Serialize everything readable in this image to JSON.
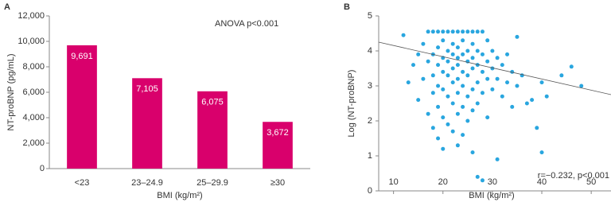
{
  "chart_data": [
    {
      "type": "bar",
      "label": "A",
      "ylabel": "NT-proBNP (pg/mL)",
      "xlabel": "BMI (kg/m²)",
      "annotation": "ANOVA p<0.001",
      "categories": [
        "<23",
        "23–24.9",
        "25–29.9",
        "≥30"
      ],
      "values": [
        9691,
        7105,
        6075,
        3672
      ],
      "value_labels": [
        "9,691",
        "7,105",
        "6,075",
        "3,672"
      ],
      "color": "#d9006c",
      "ylim": [
        0,
        12000
      ],
      "yticks": [
        0,
        {
          "value": 2000,
          "label": "2,000"
        },
        {
          "value": 4000,
          "label": "4,000"
        },
        {
          "value": 6000,
          "label": "6,000"
        },
        {
          "value": 8000,
          "label": "8,000"
        },
        {
          "value": 10000,
          "label": "10,000"
        },
        {
          "value": 12000,
          "label": "12,000"
        }
      ]
    },
    {
      "type": "scatter",
      "label": "B",
      "ylabel": "Log (NT-proBNP)",
      "xlabel": "BMI (kg/m²)",
      "annotation": "r=−0.232, p<0.001",
      "color": "#29a6df",
      "x": [
        12,
        13,
        14,
        15,
        15,
        16,
        16,
        17,
        17,
        17,
        18,
        18,
        18,
        18,
        18,
        19,
        19,
        19,
        19,
        19,
        19,
        20,
        20,
        20,
        20,
        20,
        20,
        20,
        21,
        21,
        21,
        21,
        21,
        21,
        22,
        22,
        22,
        22,
        22,
        22,
        22,
        23,
        23,
        23,
        23,
        23,
        23,
        23,
        23,
        24,
        24,
        24,
        24,
        24,
        24,
        24,
        25,
        25,
        25,
        25,
        25,
        25,
        26,
        26,
        26,
        26,
        26,
        26,
        26,
        27,
        27,
        27,
        27,
        27,
        27,
        28,
        28,
        28,
        28,
        28,
        29,
        29,
        29,
        29,
        30,
        30,
        30,
        31,
        31,
        31,
        32,
        32,
        33,
        33,
        34,
        34,
        35,
        35,
        36,
        37,
        38,
        39,
        40,
        40,
        41,
        44,
        46,
        48
      ],
      "values": [
        4.45,
        3.1,
        3.6,
        3.9,
        2.6,
        4.2,
        3.2,
        4.55,
        3.7,
        2.2,
        4.55,
        3.9,
        3.3,
        2.8,
        1.8,
        4.55,
        4.1,
        3.6,
        3.0,
        2.4,
        1.5,
        4.55,
        4.3,
        3.8,
        3.4,
        2.9,
        2.1,
        1.2,
        4.55,
        4.0,
        3.7,
        3.3,
        2.7,
        1.9,
        4.55,
        4.2,
        3.9,
        3.5,
        3.1,
        2.5,
        1.7,
        4.55,
        4.1,
        3.8,
        3.6,
        3.2,
        2.8,
        2.2,
        1.3,
        4.55,
        4.3,
        3.9,
        3.4,
        3.0,
        2.4,
        1.6,
        4.55,
        4.0,
        3.7,
        3.3,
        2.7,
        2.0,
        4.55,
        4.2,
        3.8,
        3.5,
        2.9,
        2.3,
        1.1,
        4.55,
        4.0,
        3.6,
        3.1,
        2.5,
        0.4,
        4.55,
        3.9,
        3.4,
        2.8,
        0.3,
        4.3,
        3.7,
        3.2,
        2.1,
        4.0,
        3.5,
        2.9,
        3.8,
        3.2,
        0.9,
        3.6,
        2.7,
        3.9,
        3.1,
        3.4,
        2.4,
        4.4,
        3.0,
        3.3,
        2.5,
        2.6,
        1.8,
        1.1,
        3.1,
        2.7,
        3.3,
        3.55,
        3.0
      ],
      "trendline": {
        "x": [
          7,
          54
        ],
        "y": [
          4.25,
          2.75
        ]
      },
      "xlim": [
        7,
        54
      ],
      "xticks": [
        10,
        20,
        30,
        40,
        50
      ],
      "ylim": [
        0,
        5
      ],
      "yticks": [
        0,
        1,
        2,
        3,
        4,
        5
      ]
    }
  ]
}
